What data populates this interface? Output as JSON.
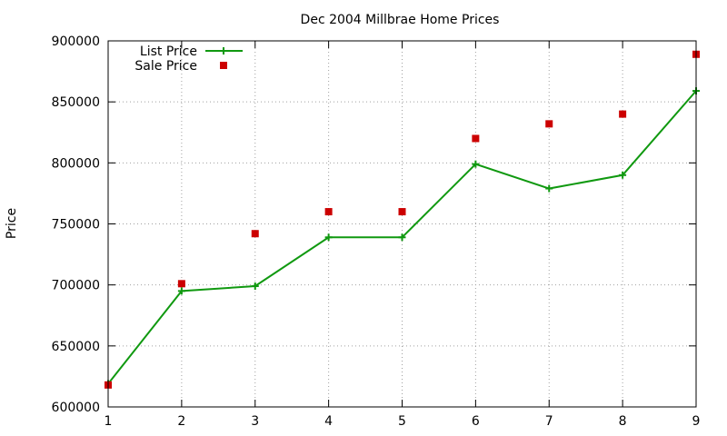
{
  "chart_data": {
    "type": "line",
    "title": "Dec 2004 Millbrae Home Prices",
    "xlabel": "",
    "ylabel": "Price",
    "x": [
      1,
      2,
      3,
      4,
      5,
      6,
      7,
      8,
      9
    ],
    "xlim": [
      1,
      9
    ],
    "ylim": [
      600000,
      900000
    ],
    "x_ticks": [
      1,
      2,
      3,
      4,
      5,
      6,
      7,
      8,
      9
    ],
    "y_ticks": [
      600000,
      650000,
      700000,
      750000,
      800000,
      850000,
      900000
    ],
    "grid": true,
    "legend_position": "top-left",
    "series": [
      {
        "name": "List Price",
        "style": "line+points",
        "marker": "plus",
        "color": "#109910",
        "values": [
          619000,
          695000,
          699000,
          739000,
          739000,
          799000,
          779000,
          790000,
          859000
        ]
      },
      {
        "name": "Sale Price",
        "style": "points",
        "marker": "square",
        "color": "#cc0000",
        "values": [
          618000,
          701000,
          742000,
          760000,
          760000,
          820000,
          832000,
          840000,
          889000
        ]
      }
    ]
  }
}
